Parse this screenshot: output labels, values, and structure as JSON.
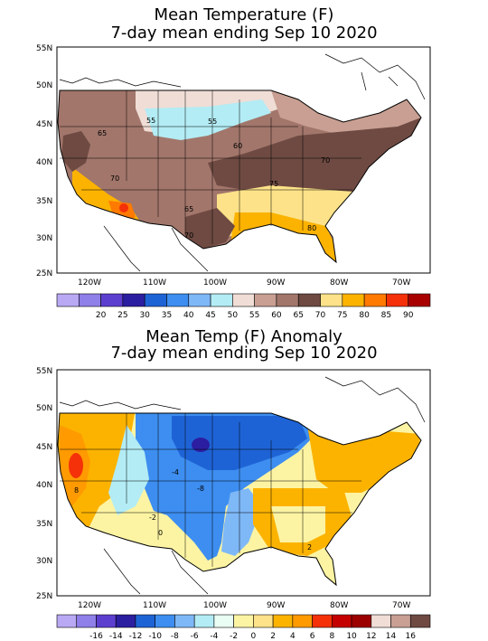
{
  "top": {
    "title_line1": "Mean Temperature (F)",
    "title_line2": "7-day mean ending Sep 10 2020",
    "lat_labels": [
      "55N",
      "50N",
      "45N",
      "40N",
      "35N",
      "30N",
      "25N"
    ],
    "lon_labels": [
      "120W",
      "110W",
      "100W",
      "90W",
      "80W",
      "70W"
    ],
    "contour_labels": [
      "65",
      "55",
      "55",
      "60",
      "70",
      "70",
      "75",
      "65",
      "70",
      "80"
    ],
    "colorbar": {
      "colors": [
        "#b9a9f4",
        "#8f7fe9",
        "#5d3fd0",
        "#2c1ea0",
        "#1e63d6",
        "#3d8ef0",
        "#7fb8f7",
        "#b3ecf4",
        "#f0ddd6",
        "#c89f92",
        "#a2766b",
        "#6e4a42",
        "#fde289",
        "#fcb300",
        "#ff7a00",
        "#f43108",
        "#a80000"
      ],
      "labels": [
        "20",
        "25",
        "30",
        "35",
        "40",
        "45",
        "50",
        "55",
        "60",
        "65",
        "70",
        "75",
        "80",
        "85",
        "90"
      ]
    }
  },
  "bottom": {
    "title_line1": "Mean Temp (F) Anomaly",
    "title_line2": "7-day mean ending Sep 10 2020",
    "lat_labels": [
      "55N",
      "50N",
      "45N",
      "40N",
      "35N",
      "30N",
      "25N"
    ],
    "lon_labels": [
      "120W",
      "110W",
      "100W",
      "90W",
      "80W",
      "70W"
    ],
    "contour_labels": [
      "8",
      "-4",
      "-8",
      "-2",
      "0",
      "2"
    ],
    "colorbar": {
      "colors": [
        "#b9a9f4",
        "#8f7fe9",
        "#5d3fd0",
        "#2c1ea0",
        "#1e63d6",
        "#3d8ef0",
        "#7fb8f7",
        "#b3ecf4",
        "#e9fdf4",
        "#fdf4a3",
        "#fde289",
        "#fcb300",
        "#ff9a00",
        "#f43108",
        "#c40000",
        "#9c0000",
        "#f0ddd6",
        "#c89f92",
        "#6e4a42"
      ],
      "labels": [
        "-16",
        "-14",
        "-12",
        "-10",
        "-8",
        "-6",
        "-4",
        "-2",
        "0",
        "2",
        "4",
        "6",
        "8",
        "10",
        "12",
        "14",
        "16"
      ]
    }
  }
}
